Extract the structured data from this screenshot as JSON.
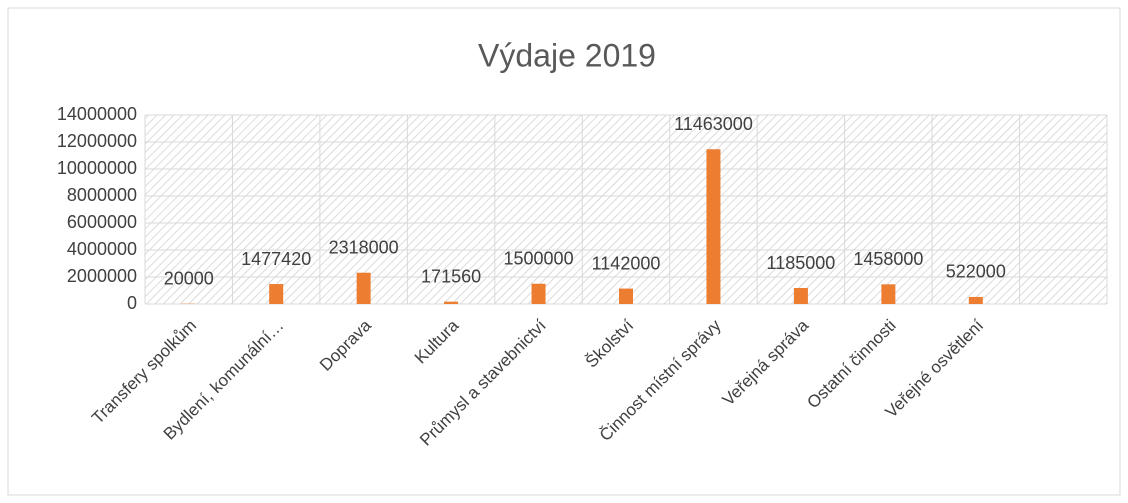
{
  "chart_data": {
    "type": "bar",
    "title": "Výdaje 2019",
    "categories": [
      "Transfery spolkům",
      "Bydlení, komunální…",
      "Doprava",
      "Kultura",
      "Průmysl a stavebnictví",
      "Školství",
      "Činnost místní správy",
      "Veřejná správa",
      "Ostatní činnosti",
      "Veřejné osvětlení",
      null
    ],
    "values": [
      20000,
      1477420,
      2318000,
      171560,
      1500000,
      1142000,
      11463000,
      1185000,
      1458000,
      522000,
      null
    ],
    "color": "#ed7d31",
    "ylim": [
      0,
      14000000
    ],
    "yticks": [
      0,
      2000000,
      4000000,
      6000000,
      8000000,
      10000000,
      12000000,
      14000000
    ],
    "grid": true
  }
}
